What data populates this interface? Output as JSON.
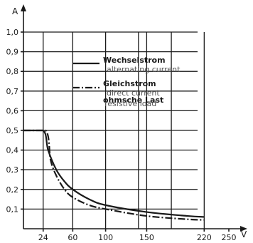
{
  "chart_data": {
    "type": "line",
    "x_unit": "V",
    "y_unit": "A",
    "xlim": [
      0,
      250
    ],
    "ylim": [
      0,
      1.0
    ],
    "grid": true,
    "legend_placement": "top-center",
    "x_ticks": [
      24,
      60,
      100,
      150,
      220,
      250
    ],
    "y_ticks": [
      0.1,
      0.2,
      0.3,
      0.4,
      0.5,
      0.6,
      0.7,
      0.8,
      0.9,
      1.0
    ],
    "x_tick_labels": [
      "24",
      "60",
      "100",
      "150",
      "220",
      "250"
    ],
    "y_tick_labels": [
      "0,1",
      "0,2",
      "0,3",
      "0,4",
      "0,5",
      "0,6",
      "0,7",
      "0,8",
      "0,9",
      "1,0"
    ],
    "series": [
      {
        "name": "Wechselstrom",
        "name_en": "alternating current",
        "style": "solid",
        "x": [
          0,
          24,
          30,
          40,
          50,
          60,
          80,
          100,
          150,
          200,
          220
        ],
        "y": [
          0.5,
          0.5,
          0.4,
          0.3,
          0.24,
          0.2,
          0.15,
          0.12,
          0.085,
          0.065,
          0.06
        ]
      },
      {
        "name": "Gleichstrom ohmsche Last",
        "name_en": "resistive load",
        "style": "dash-dot",
        "x": [
          0,
          27,
          33,
          40,
          50,
          60,
          80,
          100,
          150,
          200,
          220
        ],
        "y": [
          0.5,
          0.5,
          0.35,
          0.27,
          0.2,
          0.16,
          0.12,
          0.1,
          0.065,
          0.048,
          0.045
        ]
      }
    ],
    "legend": {
      "line1_de": "Wechselstrom",
      "line1_en": "alternating current",
      "line2_de": "Gleichstrom",
      "line2_en": "direct current",
      "line3_de": "ohmsche Last",
      "line3_en": "resistive load"
    }
  }
}
